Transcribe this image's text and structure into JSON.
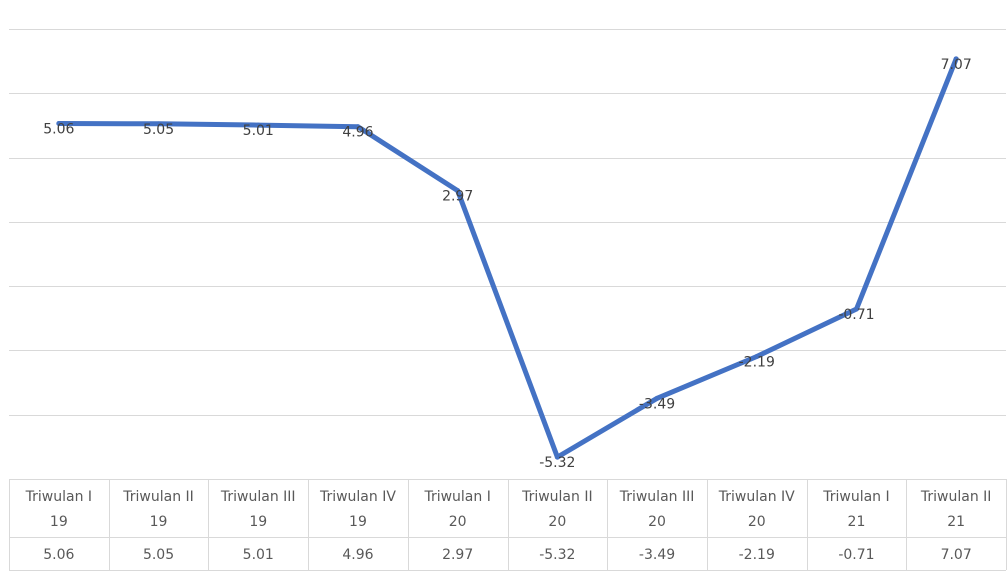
{
  "chart_data": {
    "type": "line",
    "categories": [
      [
        "Triwulan I",
        "19"
      ],
      [
        "Triwulan II",
        "19"
      ],
      [
        "Triwulan III",
        "19"
      ],
      [
        "Triwulan IV",
        "19"
      ],
      [
        "Triwulan I",
        "20"
      ],
      [
        "Triwulan II",
        "20"
      ],
      [
        "Triwulan III",
        "20"
      ],
      [
        "Triwulan IV",
        "20"
      ],
      [
        "Triwulan I",
        "21"
      ],
      [
        "Triwulan II",
        "21"
      ]
    ],
    "series": [
      {
        "values": [
          5.06,
          5.05,
          5.01,
          4.96,
          2.97,
          -5.32,
          -3.49,
          -2.19,
          -0.71,
          7.07
        ],
        "labels": [
          "5.06",
          "5.05",
          "5.01",
          "4.96",
          "2.97",
          "-5.32",
          "-3.49",
          "-2.19",
          "-0.71",
          "7.07"
        ]
      }
    ],
    "ylim": [
      -6,
      8
    ],
    "y_gridlines": [
      -4,
      -2,
      0,
      2,
      4,
      6,
      8
    ],
    "grid": true,
    "data_table": true,
    "colors": {
      "line": "#4472C4",
      "grid": "#d9d9d9",
      "text": "#404040",
      "table_text": "#595959"
    }
  }
}
